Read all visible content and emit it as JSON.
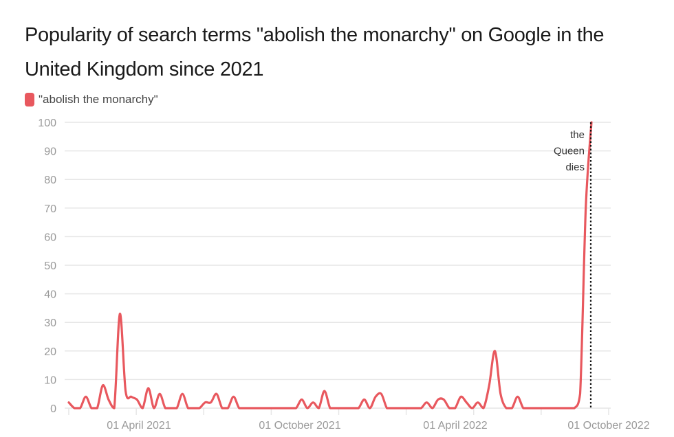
{
  "chart_data": {
    "type": "line",
    "title": "Popularity of search terms \"abolish the monarchy\" on Google in the United Kingdom since 2021",
    "legend": "top-left",
    "series": [
      {
        "name": "\"abolish the monarchy\"",
        "color": "#e8585e",
        "note": "approximate weekly values read from chart",
        "values": [
          2,
          0,
          0,
          4,
          0,
          0,
          8,
          3,
          0,
          33,
          6,
          4,
          3,
          0,
          7,
          0,
          5,
          0,
          0,
          0,
          5,
          0,
          0,
          0,
          2,
          2,
          5,
          0,
          0,
          4,
          0,
          0,
          0,
          0,
          0,
          0,
          0,
          0,
          0,
          0,
          0,
          3,
          0,
          2,
          0,
          6,
          0,
          0,
          0,
          0,
          0,
          0,
          3,
          0,
          4,
          5,
          0,
          0,
          0,
          0,
          0,
          0,
          0,
          2,
          0,
          3,
          3,
          0,
          0,
          4,
          2,
          0,
          2,
          0,
          8,
          20,
          5,
          0,
          0,
          4,
          0,
          0,
          0,
          0,
          0,
          0,
          0,
          0,
          0,
          0,
          5,
          70,
          100
        ]
      }
    ],
    "x_ticks": [
      "01 April 2021",
      "01 October 2021",
      "01 April 2022",
      "01 October 2022"
    ],
    "y_ticks": [
      0,
      10,
      20,
      30,
      40,
      50,
      60,
      70,
      80,
      90,
      100
    ],
    "ylim": [
      0,
      100
    ],
    "annotation": {
      "lines": [
        "the",
        "Queen",
        "dies"
      ]
    }
  },
  "colors": {
    "line": "#e8585e",
    "grid": "#e6e6e6",
    "tick": "#999999",
    "marker": "#111111"
  }
}
